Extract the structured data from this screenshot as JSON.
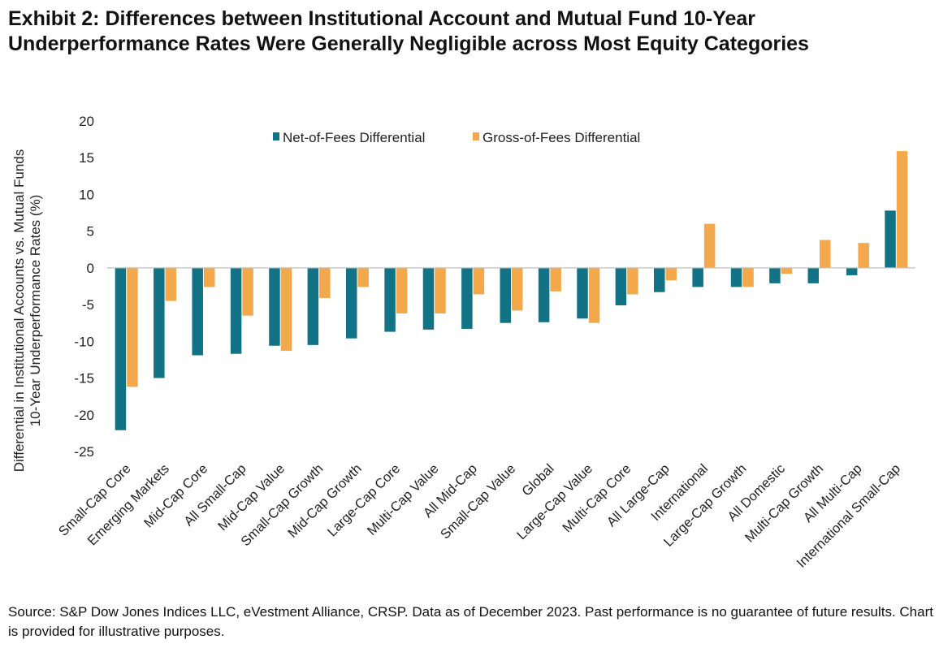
{
  "title": "Exhibit 2: Differences between Institutional Account and Mutual Fund 10-Year Underperformance Rates Were Generally Negligible across Most Equity Categories",
  "source": "Source: S&P Dow Jones Indices LLC, eVestment Alliance, CRSP. Data as of December 2023. Past performance is no guarantee of future results. Chart is provided for illustrative purposes.",
  "colors": {
    "net": "#127286",
    "gross": "#F3A84C",
    "axis": "#BFBFBF"
  },
  "chart_data": {
    "type": "bar",
    "title": "Exhibit 2: Differences between Institutional Account and Mutual Fund 10-Year Underperformance Rates Were Generally Negligible across Most Equity Categories",
    "ylabel_line1": "Differential in Institutional Accounts vs. Mutual Funds",
    "ylabel_line2": "10-Year Underperformance Rates (%)",
    "xlabel": "",
    "ylim": [
      -25,
      20
    ],
    "yticks": [
      20,
      15,
      10,
      5,
      0,
      -5,
      -10,
      -15,
      -20,
      -25
    ],
    "legend_position": "top-center",
    "categories": [
      "Small-Cap Core",
      "Emerging Markets",
      "Mid-Cap Core",
      "All Small-Cap",
      "Mid-Cap Value",
      "Small-Cap Growth",
      "Mid-Cap Growth",
      "Large-Cap Core",
      "Multi-Cap Value",
      "All Mid-Cap",
      "Small-Cap Value",
      "Global",
      "Large-Cap Value",
      "Multi-Cap Core",
      "All Large-Cap",
      "International",
      "Large-Cap Growth",
      "All Domestic",
      "Multi-Cap Growth",
      "All Multi-Cap",
      "International Small-Cap"
    ],
    "series": [
      {
        "name": "Net-of-Fees Differential",
        "values": [
          -22.1,
          -15.0,
          -11.9,
          -11.7,
          -10.6,
          -10.5,
          -9.6,
          -8.7,
          -8.4,
          -8.3,
          -7.5,
          -7.4,
          -6.9,
          -5.1,
          -3.3,
          -2.6,
          -2.6,
          -2.1,
          -2.1,
          -1.0,
          7.8
        ]
      },
      {
        "name": "Gross-of-Fees Differential",
        "values": [
          -16.2,
          -4.5,
          -2.6,
          -6.5,
          -11.3,
          -4.1,
          -2.6,
          -6.2,
          -6.2,
          -3.6,
          -5.8,
          -3.2,
          -7.5,
          -3.6,
          -1.7,
          6.0,
          -2.6,
          -0.8,
          3.8,
          3.4,
          15.9
        ]
      }
    ]
  }
}
